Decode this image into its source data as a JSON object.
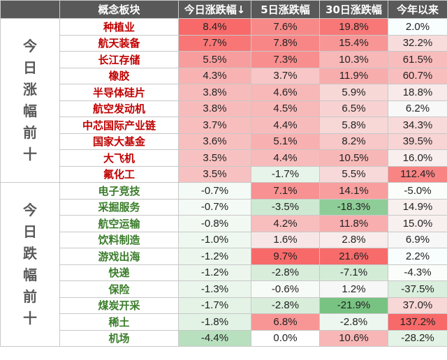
{
  "header": {
    "sector": "概念板块",
    "today": "今日涨跌幅↓",
    "d5": "5日涨跌幅",
    "d30": "30日涨跌幅",
    "ytd": "今年以来"
  },
  "groups": {
    "gainers_label": "今日涨幅前十",
    "losers_label": "今日跌幅前十"
  },
  "colors": {
    "gain_text": "#c00000",
    "loss_text": "#3a7d2a",
    "header_bg": "#595959"
  },
  "gainers": [
    {
      "name": "种植业",
      "today": "8.4%",
      "d5": "7.6%",
      "d30": "19.8%",
      "ytd": "2.0%"
    },
    {
      "name": "航天装备",
      "today": "7.7%",
      "d5": "7.8%",
      "d30": "15.4%",
      "ytd": "32.2%"
    },
    {
      "name": "长江存储",
      "today": "5.5%",
      "d5": "7.3%",
      "d30": "10.3%",
      "ytd": "61.5%"
    },
    {
      "name": "橡胶",
      "today": "4.3%",
      "d5": "3.7%",
      "d30": "11.9%",
      "ytd": "60.7%"
    },
    {
      "name": "半导体硅片",
      "today": "3.8%",
      "d5": "4.6%",
      "d30": "5.9%",
      "ytd": "18.8%"
    },
    {
      "name": "航空发动机",
      "today": "3.8%",
      "d5": "4.5%",
      "d30": "6.5%",
      "ytd": "6.2%"
    },
    {
      "name": "中芯国际产业链",
      "today": "3.7%",
      "d5": "4.4%",
      "d30": "5.8%",
      "ytd": "34.3%"
    },
    {
      "name": "国家大基金",
      "today": "3.6%",
      "d5": "5.1%",
      "d30": "8.2%",
      "ytd": "39.5%"
    },
    {
      "name": "大飞机",
      "today": "3.5%",
      "d5": "4.4%",
      "d30": "10.5%",
      "ytd": "16.0%"
    },
    {
      "name": "氟化工",
      "today": "3.5%",
      "d5": "-1.7%",
      "d30": "5.5%",
      "ytd": "112.4%"
    }
  ],
  "losers": [
    {
      "name": "电子竞技",
      "today": "-0.7%",
      "d5": "7.1%",
      "d30": "14.1%",
      "ytd": "-5.0%"
    },
    {
      "name": "采掘服务",
      "today": "-0.7%",
      "d5": "-3.5%",
      "d30": "-18.3%",
      "ytd": "14.9%"
    },
    {
      "name": "航空运输",
      "today": "-0.8%",
      "d5": "4.2%",
      "d30": "11.8%",
      "ytd": "15.0%"
    },
    {
      "name": "饮料制造",
      "today": "-1.0%",
      "d5": "1.6%",
      "d30": "2.8%",
      "ytd": "6.9%"
    },
    {
      "name": "游戏出海",
      "today": "-1.2%",
      "d5": "9.7%",
      "d30": "21.6%",
      "ytd": "2.2%"
    },
    {
      "name": "快递",
      "today": "-1.2%",
      "d5": "-2.8%",
      "d30": "-7.1%",
      "ytd": "-4.3%"
    },
    {
      "name": "保险",
      "today": "-1.3%",
      "d5": "-0.6%",
      "d30": "1.2%",
      "ytd": "-37.5%"
    },
    {
      "name": "煤炭开采",
      "today": "-1.7%",
      "d5": "-2.8%",
      "d30": "-21.9%",
      "ytd": "37.0%"
    },
    {
      "name": "稀土",
      "today": "-1.8%",
      "d5": "6.8%",
      "d30": "-2.8%",
      "ytd": "137.2%"
    },
    {
      "name": "机场",
      "today": "-4.4%",
      "d5": "0.0%",
      "d30": "10.6%",
      "ytd": "-28.2%"
    }
  ]
}
